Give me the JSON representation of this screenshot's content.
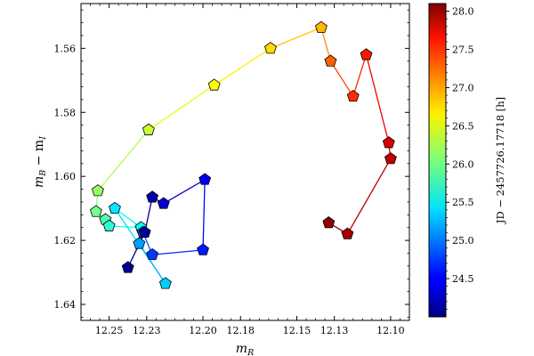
{
  "chart_data": {
    "type": "scatter",
    "title": "",
    "xlabel": "m",
    "xlabel_sub": "R",
    "ylabel_main": "m",
    "ylabel_sub1": "B",
    "ylabel_mid": " − m",
    "ylabel_sub2": "I",
    "xlim": [
      12.265,
      12.09
    ],
    "ylim": [
      1.645,
      1.546
    ],
    "x_inverted": true,
    "y_inverted": true,
    "xticks": [
      12.25,
      12.23,
      12.2,
      12.18,
      12.15,
      12.13,
      12.1
    ],
    "xtick_labels": [
      "12.25",
      "12.23",
      "12.20",
      "12.18",
      "12.15",
      "12.13",
      "12.10"
    ],
    "yticks": [
      1.56,
      1.58,
      1.6,
      1.62,
      1.64
    ],
    "ytick_labels": [
      "1.56",
      "1.58",
      "1.60",
      "1.62",
      "1.64"
    ],
    "marker": "pentagon",
    "connected": true,
    "colorbar": {
      "label": "JD − 2457726.17718 [h]",
      "range": [
        24.0,
        28.1
      ],
      "ticks": [
        24.5,
        25.0,
        25.5,
        26.0,
        26.5,
        27.0,
        27.5,
        28.0
      ],
      "tick_labels": [
        "24.5",
        "25.0",
        "25.5",
        "26.0",
        "26.5",
        "27.0",
        "27.5",
        "28.0"
      ],
      "colormap": "jet"
    },
    "points": [
      {
        "x": 12.133,
        "y": 1.6145,
        "t": 28.05
      },
      {
        "x": 12.123,
        "y": 1.618,
        "t": 27.95
      },
      {
        "x": 12.1,
        "y": 1.5945,
        "t": 27.85
      },
      {
        "x": 12.101,
        "y": 1.5895,
        "t": 27.75
      },
      {
        "x": 12.113,
        "y": 1.562,
        "t": 27.5
      },
      {
        "x": 12.12,
        "y": 1.575,
        "t": 27.4
      },
      {
        "x": 12.132,
        "y": 1.564,
        "t": 27.2
      },
      {
        "x": 12.137,
        "y": 1.5535,
        "t": 26.85
      },
      {
        "x": 12.164,
        "y": 1.56,
        "t": 26.7
      },
      {
        "x": 12.194,
        "y": 1.5715,
        "t": 26.55
      },
      {
        "x": 12.229,
        "y": 1.5855,
        "t": 26.35
      },
      {
        "x": 12.256,
        "y": 1.6045,
        "t": 26.15
      },
      {
        "x": 12.257,
        "y": 1.611,
        "t": 26.0
      },
      {
        "x": 12.252,
        "y": 1.6135,
        "t": 25.85
      },
      {
        "x": 12.25,
        "y": 1.6155,
        "t": 25.7
      },
      {
        "x": 12.233,
        "y": 1.616,
        "t": 25.55
      },
      {
        "x": 12.247,
        "y": 1.61,
        "t": 25.45
      },
      {
        "x": 12.22,
        "y": 1.6335,
        "t": 25.35
      },
      {
        "x": 12.234,
        "y": 1.621,
        "t": 25.15
      },
      {
        "x": 12.232,
        "y": 1.6175,
        "t": 24.9
      },
      {
        "x": 12.227,
        "y": 1.6245,
        "t": 24.75
      },
      {
        "x": 12.2,
        "y": 1.623,
        "t": 24.6
      },
      {
        "x": 12.199,
        "y": 1.601,
        "t": 24.45
      },
      {
        "x": 12.221,
        "y": 1.6085,
        "t": 24.3
      },
      {
        "x": 12.227,
        "y": 1.6065,
        "t": 24.15
      },
      {
        "x": 12.231,
        "y": 1.6175,
        "t": 24.1
      },
      {
        "x": 12.24,
        "y": 1.6285,
        "t": 24.05
      }
    ]
  }
}
